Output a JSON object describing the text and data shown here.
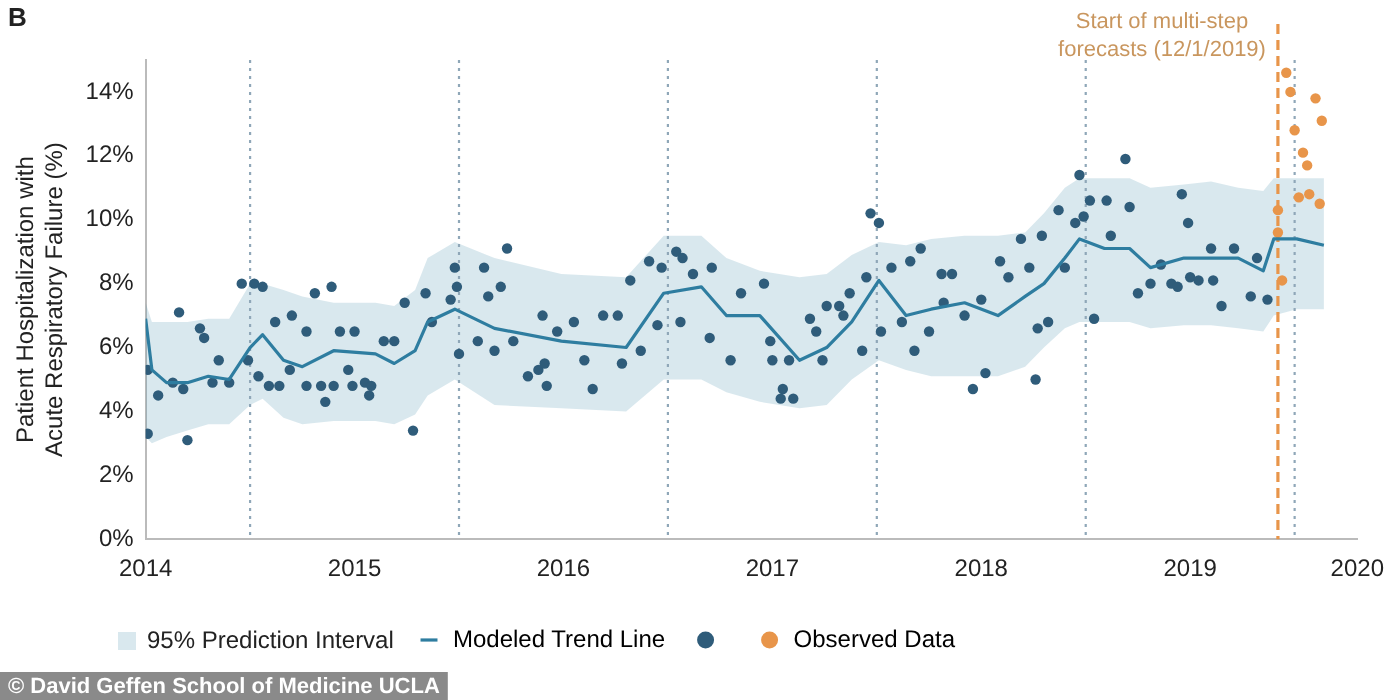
{
  "chart_data": {
    "type": "scatter",
    "ylabel": "Patient Hospitalization with Acute Respiratory Failure (%)",
    "annotations": [
      "B",
      "© David Geffen School of Medicine UCLA",
      "95% Prediction Interval"
    ],
    "xlim": [
      2014.5,
      2020.3
    ],
    "xticks": [
      {
        "value": 2014.5,
        "label": "2014"
      },
      {
        "value": 2015.5,
        "label": "2015"
      },
      {
        "value": 2016.5,
        "label": "2016"
      },
      {
        "value": 2017.5,
        "label": "2017"
      },
      {
        "value": 2018.5,
        "label": "2018"
      },
      {
        "value": 2019.5,
        "label": "2019"
      },
      {
        "value": 2020.3,
        "label": "2020"
      }
    ],
    "ylim": [
      0,
      15
    ],
    "yticks": [
      {
        "value": 0,
        "label": "0%"
      },
      {
        "value": 2,
        "label": "2%"
      },
      {
        "value": 4,
        "label": "4%"
      },
      {
        "value": 6,
        "label": "6%"
      },
      {
        "value": 8,
        "label": "8%"
      },
      {
        "value": 10,
        "label": "10%"
      },
      {
        "value": 12,
        "label": "12%"
      },
      {
        "value": 14,
        "label": "14%"
      }
    ],
    "grid": false,
    "legend": "bottom",
    "ref_lines": [
      {
        "axis": "x",
        "value": 2015,
        "color": "#8fa7b8",
        "line_style": "dotted"
      },
      {
        "axis": "x",
        "value": 2016,
        "color": "#8fa7b8",
        "line_style": "dotted"
      },
      {
        "axis": "x",
        "value": 2017,
        "color": "#8fa7b8",
        "line_style": "dotted"
      },
      {
        "axis": "x",
        "value": 2018,
        "color": "#8fa7b8",
        "line_style": "dotted"
      },
      {
        "axis": "x",
        "value": 2019,
        "color": "#8fa7b8",
        "line_style": "dotted"
      },
      {
        "axis": "x",
        "value": 2020,
        "color": "#8fa7b8",
        "line_style": "dotted"
      },
      {
        "axis": "x",
        "value": 2019.92,
        "label": "Start of multi-step forecasts (12/1/2019)",
        "color": "#e8954a",
        "line_style": "dashed"
      }
    ],
    "series": [
      {
        "type": "line",
        "name": "Modeled Trend Line",
        "color": "#2e7da0",
        "lower": [
          3.2,
          3.0,
          3.2,
          3.4,
          3.6,
          3.6,
          4.2,
          4.4,
          3.8,
          3.6,
          3.7,
          3.7,
          3.6,
          3.9,
          4.5,
          5.0,
          4.2,
          4.1,
          4.0,
          5.0,
          5.0,
          4.6,
          4.3,
          4.1,
          4.2,
          5.0,
          5.6,
          5.3,
          5.1,
          5.1,
          5.1,
          5.4,
          6.0,
          6.6,
          6.8,
          6.8,
          6.8,
          6.6,
          6.7,
          6.7,
          6.6,
          6.5,
          7.0,
          7.2,
          7.2
        ],
        "upper": [
          7.4,
          6.8,
          6.8,
          6.8,
          6.9,
          6.9,
          8.0,
          8.0,
          7.8,
          7.6,
          7.4,
          7.4,
          7.3,
          7.8,
          8.8,
          9.3,
          8.8,
          8.3,
          8.2,
          9.5,
          9.5,
          8.8,
          8.4,
          8.2,
          8.3,
          8.9,
          9.3,
          9.2,
          9.4,
          9.5,
          9.5,
          9.6,
          10.2,
          11.0,
          11.3,
          11.3,
          11.3,
          11.0,
          11.1,
          11.2,
          11.0,
          10.9,
          11.3,
          11.3,
          11.3
        ],
        "x": [
          2014.5,
          2014.53,
          2014.6,
          2014.7,
          2014.8,
          2014.9,
          2015.0,
          2015.06,
          2015.16,
          2015.25,
          2015.4,
          2015.6,
          2015.69,
          2015.79,
          2015.85,
          2015.98,
          2016.17,
          2016.49,
          2016.8,
          2016.98,
          2017.16,
          2017.28,
          2017.44,
          2017.63,
          2017.76,
          2017.88,
          2018.01,
          2018.14,
          2018.26,
          2018.42,
          2018.58,
          2018.71,
          2018.8,
          2018.9,
          2018.97,
          2019.09,
          2019.21,
          2019.31,
          2019.47,
          2019.6,
          2019.73,
          2019.85,
          2019.9,
          2020.01,
          2020.14
        ],
        "values": [
          6.9,
          5.3,
          4.9,
          4.9,
          5.1,
          5.0,
          6.0,
          6.4,
          5.6,
          5.4,
          5.9,
          5.8,
          5.5,
          5.9,
          6.8,
          7.2,
          6.6,
          6.2,
          6.0,
          7.7,
          7.9,
          7.0,
          7.0,
          5.6,
          6.0,
          6.8,
          8.1,
          7.0,
          7.2,
          7.4,
          7.0,
          7.6,
          8.0,
          8.8,
          9.4,
          9.1,
          9.1,
          8.5,
          8.8,
          8.8,
          8.8,
          8.4,
          9.4,
          9.4,
          9.2
        ]
      },
      {
        "color": "#2f5c7a",
        "x": [
          2014.51,
          2014.51,
          2014.56,
          2014.63,
          2014.7,
          2014.68,
          2014.66,
          2014.76,
          2014.78,
          2014.82,
          2014.85,
          2014.9,
          2014.96,
          2015.02,
          2015.06,
          2014.99,
          2015.04,
          2015.09,
          2015.14,
          2015.12,
          2015.19,
          2015.2,
          2015.27,
          2015.27,
          2015.31,
          2015.34,
          2015.36,
          2015.39,
          2015.4,
          2015.43,
          2015.47,
          2015.5,
          2015.49,
          2015.55,
          2015.57,
          2015.58,
          2015.64,
          2015.69,
          2015.74,
          2015.78,
          2015.84,
          2015.87,
          2015.96,
          2015.98,
          2016.0,
          2015.99,
          2016.12,
          2016.14,
          2016.2,
          2016.23,
          2016.09,
          2016.17,
          2016.26,
          2016.33,
          2016.38,
          2016.41,
          2016.42,
          2016.4,
          2016.47,
          2016.55,
          2016.6,
          2016.64,
          2016.69,
          2016.76,
          2016.78,
          2016.82,
          2016.87,
          2016.91,
          2016.95,
          2016.97,
          2017.04,
          2017.07,
          2017.06,
          2017.12,
          2017.21,
          2017.2,
          2017.3,
          2017.35,
          2017.46,
          2017.49,
          2017.5,
          2017.54,
          2017.55,
          2017.6,
          2017.58,
          2017.68,
          2017.71,
          2017.74,
          2017.76,
          2017.82,
          2017.84,
          2017.87,
          2017.93,
          2017.95,
          2017.97,
          2018.01,
          2018.02,
          2018.07,
          2018.12,
          2018.18,
          2018.21,
          2018.16,
          2018.25,
          2018.31,
          2018.36,
          2018.32,
          2018.42,
          2018.46,
          2018.52,
          2018.5,
          2018.59,
          2018.63,
          2018.69,
          2018.73,
          2018.76,
          2018.77,
          2018.79,
          2018.82,
          2018.87,
          2018.9,
          2018.95,
          2018.97,
          2018.99,
          2019.02,
          2019.04,
          2019.1,
          2019.12,
          2019.19,
          2019.21,
          2019.25,
          2019.31,
          2019.36,
          2019.41,
          2019.44,
          2019.46,
          2019.49,
          2019.5,
          2019.54,
          2019.61,
          2019.6,
          2019.65,
          2019.71,
          2019.79,
          2019.82,
          2019.87
        ],
        "values": [
          5.3,
          3.3,
          4.5,
          4.9,
          3.1,
          4.7,
          7.1,
          6.6,
          6.3,
          4.9,
          5.6,
          4.9,
          8.0,
          8.0,
          7.9,
          5.6,
          5.1,
          4.8,
          4.8,
          6.8,
          5.3,
          7.0,
          4.8,
          6.5,
          7.7,
          4.8,
          4.3,
          7.9,
          4.8,
          6.5,
          5.3,
          6.5,
          4.8,
          4.9,
          4.5,
          4.8,
          6.2,
          6.2,
          7.4,
          3.4,
          7.7,
          6.8,
          7.5,
          8.5,
          5.8,
          7.9,
          8.5,
          7.6,
          7.9,
          9.1,
          6.2,
          5.9,
          6.2,
          5.1,
          5.3,
          5.5,
          4.8,
          7.0,
          6.5,
          6.8,
          5.6,
          4.7,
          7.0,
          7.0,
          5.5,
          8.1,
          5.9,
          8.7,
          6.7,
          8.5,
          9.0,
          8.8,
          6.8,
          8.3,
          8.5,
          6.3,
          5.6,
          7.7,
          8.0,
          6.2,
          5.6,
          4.4,
          4.7,
          4.4,
          5.6,
          6.9,
          6.5,
          5.6,
          7.3,
          7.3,
          7.0,
          7.7,
          5.9,
          8.2,
          10.2,
          9.9,
          6.5,
          8.5,
          6.8,
          5.9,
          9.1,
          8.7,
          6.5,
          8.3,
          8.3,
          7.4,
          7.0,
          4.7,
          5.2,
          7.5,
          8.7,
          8.2,
          9.4,
          8.5,
          5.0,
          6.6,
          9.5,
          6.8,
          10.3,
          8.5,
          9.9,
          11.4,
          10.1,
          10.6,
          6.9,
          10.6,
          9.5,
          11.9,
          10.4,
          7.7,
          8.0,
          8.6,
          8.0,
          7.9,
          10.8,
          9.9,
          8.2,
          8.1,
          8.1,
          9.1,
          7.3,
          9.1,
          7.6,
          8.8,
          7.5
        ]
      },
      {
        "name": "Observed Data",
        "color": "#e8954a",
        "x": [
          2019.92,
          2019.92,
          2019.94,
          2019.96,
          2019.98,
          2020.0,
          2020.02,
          2020.04,
          2020.06,
          2020.07,
          2020.1,
          2020.12,
          2020.13
        ],
        "values": [
          10.3,
          9.6,
          8.1,
          14.6,
          14.0,
          12.8,
          10.7,
          12.1,
          11.7,
          10.8,
          13.8,
          10.5,
          13.1
        ]
      }
    ]
  }
}
